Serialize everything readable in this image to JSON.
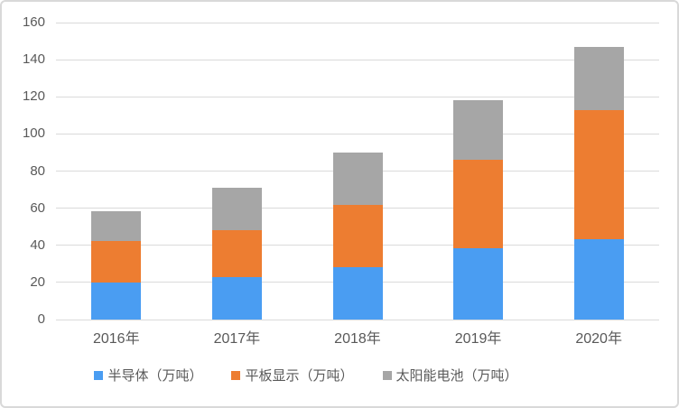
{
  "chart_data": {
    "type": "bar",
    "stacked": true,
    "title": "",
    "categories": [
      "2016年",
      "2017年",
      "2018年",
      "2019年",
      "2020年"
    ],
    "series": [
      {
        "name": "半导体（万吨）",
        "color": "#4a9df2",
        "values": [
          20.0,
          23.0,
          28.0,
          38.5,
          43.5
        ]
      },
      {
        "name": "平板显示（万吨）",
        "color": "#ed7d31",
        "values": [
          22.5,
          25.0,
          34.0,
          47.5,
          69.5
        ]
      },
      {
        "name": "太阳能电池（万吨）",
        "color": "#a6a6a6",
        "values": [
          16.0,
          23.0,
          28.0,
          32.0,
          34.0
        ]
      }
    ],
    "totals": [
      58.5,
      71.0,
      90.0,
      118.0,
      147.0
    ],
    "ylim": [
      0,
      160
    ],
    "yticks": [
      0,
      20,
      40,
      60,
      80,
      100,
      120,
      140,
      160
    ],
    "grid": true,
    "legend_position": "bottom"
  },
  "styles": {
    "background": "#ffffff",
    "frame_border_color": "#d9d9d9",
    "gridline_color": "#dadada",
    "axis_text_color": "#595959",
    "legend_text_color": "#595959"
  }
}
